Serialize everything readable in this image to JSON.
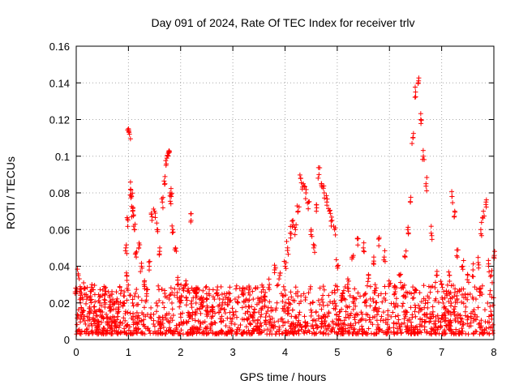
{
  "chart_data": {
    "type": "scatter",
    "title": "Day 091 of 2024, Rate Of TEC Index for receiver trlv",
    "xlabel": "GPS time / hours",
    "ylabel": "ROTI / TECUs",
    "xlim": [
      0,
      8
    ],
    "ylim": [
      0,
      0.16
    ],
    "grid": true,
    "marker": "plus",
    "color": "#ff0000",
    "x_ticks": [
      0,
      1,
      2,
      3,
      4,
      5,
      6,
      7,
      8
    ],
    "x_tick_labels": [
      "0",
      "1",
      "2",
      "3",
      "4",
      "5",
      "6",
      "7",
      "8"
    ],
    "y_ticks": [
      0,
      0.02,
      0.04,
      0.06,
      0.08,
      0.1,
      0.12,
      0.14,
      0.16
    ],
    "y_tick_labels": [
      "0",
      "0.02",
      "0.04",
      "0.06",
      "0.08",
      "0.1",
      "0.12",
      "0.14",
      "0.16"
    ],
    "series": [
      {
        "name": "ROTI",
        "x": [
          0.0,
          0.04,
          0.08,
          0.12,
          0.16,
          0.2,
          0.25,
          0.3,
          0.35,
          0.4,
          0.45,
          0.5,
          0.55,
          0.6,
          0.65,
          0.7,
          0.75,
          0.8,
          0.85,
          0.9,
          0.95,
          0.97,
          0.99,
          1.0,
          1.02,
          1.04,
          1.06,
          1.08,
          1.1,
          1.12,
          1.15,
          1.2,
          1.25,
          1.3,
          1.35,
          1.4,
          1.45,
          1.5,
          1.55,
          1.6,
          1.65,
          1.7,
          1.72,
          1.75,
          1.78,
          1.8,
          1.82,
          1.85,
          1.9,
          1.95,
          2.0,
          2.1,
          2.2,
          2.3,
          2.4,
          2.5,
          2.6,
          2.7,
          2.8,
          2.9,
          3.0,
          3.1,
          3.2,
          3.3,
          3.4,
          3.5,
          3.6,
          3.7,
          3.8,
          3.9,
          4.0,
          4.05,
          4.1,
          4.15,
          4.2,
          4.25,
          4.3,
          4.35,
          4.4,
          4.45,
          4.5,
          4.55,
          4.6,
          4.65,
          4.7,
          4.75,
          4.8,
          4.85,
          4.9,
          4.95,
          5.0,
          5.1,
          5.2,
          5.3,
          5.4,
          5.5,
          5.6,
          5.7,
          5.8,
          5.9,
          6.0,
          6.1,
          6.2,
          6.3,
          6.35,
          6.4,
          6.45,
          6.5,
          6.55,
          6.6,
          6.65,
          6.7,
          6.8,
          6.9,
          7.0,
          7.1,
          7.15,
          7.2,
          7.25,
          7.3,
          7.4,
          7.5,
          7.6,
          7.7,
          7.75,
          7.8,
          7.85,
          7.9,
          7.95,
          8.0
        ],
        "y": [
          0.025,
          0.035,
          0.02,
          0.015,
          0.028,
          0.022,
          0.012,
          0.03,
          0.018,
          0.01,
          0.02,
          0.015,
          0.025,
          0.012,
          0.018,
          0.022,
          0.01,
          0.015,
          0.025,
          0.02,
          0.05,
          0.035,
          0.065,
          0.115,
          0.112,
          0.082,
          0.078,
          0.07,
          0.068,
          0.06,
          0.045,
          0.05,
          0.04,
          0.03,
          0.025,
          0.04,
          0.065,
          0.07,
          0.06,
          0.05,
          0.075,
          0.085,
          0.095,
          0.1,
          0.102,
          0.08,
          0.078,
          0.06,
          0.05,
          0.03,
          0.02,
          0.032,
          0.065,
          0.028,
          0.02,
          0.025,
          0.018,
          0.027,
          0.02,
          0.022,
          0.015,
          0.02,
          0.025,
          0.018,
          0.015,
          0.02,
          0.022,
          0.03,
          0.038,
          0.035,
          0.04,
          0.05,
          0.058,
          0.065,
          0.06,
          0.07,
          0.088,
          0.085,
          0.08,
          0.075,
          0.06,
          0.05,
          0.07,
          0.09,
          0.085,
          0.08,
          0.075,
          0.07,
          0.065,
          0.06,
          0.04,
          0.025,
          0.03,
          0.045,
          0.055,
          0.05,
          0.035,
          0.045,
          0.055,
          0.045,
          0.03,
          0.025,
          0.035,
          0.045,
          0.06,
          0.075,
          0.11,
          0.135,
          0.14,
          0.12,
          0.1,
          0.085,
          0.058,
          0.035,
          0.03,
          0.025,
          0.035,
          0.078,
          0.07,
          0.045,
          0.04,
          0.035,
          0.038,
          0.042,
          0.06,
          0.07,
          0.075,
          0.04,
          0.035,
          0.045
        ]
      }
    ],
    "background_noise_band": {
      "description": "dense cluster of ROTI values along the whole day",
      "x_range": [
        0,
        8
      ],
      "y_range": [
        0.003,
        0.03
      ]
    }
  }
}
